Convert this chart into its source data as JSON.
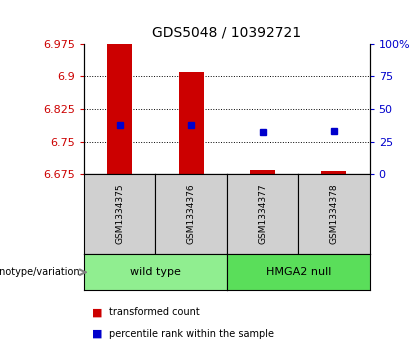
{
  "title": "GDS5048 / 10392721",
  "samples": [
    "GSM1334375",
    "GSM1334376",
    "GSM1334377",
    "GSM1334378"
  ],
  "groups": [
    "wild type",
    "wild type",
    "HMGA2 null",
    "HMGA2 null"
  ],
  "group_labels": [
    "wild type",
    "HMGA2 null"
  ],
  "bar_bottom": 6.675,
  "bar_tops": [
    6.975,
    6.91,
    6.685,
    6.683
  ],
  "percentile_values": [
    6.787,
    6.787,
    6.771,
    6.775
  ],
  "ylim": [
    6.675,
    6.975
  ],
  "yticks": [
    6.675,
    6.75,
    6.825,
    6.9,
    6.975
  ],
  "right_ytick_pct": [
    0,
    25,
    50,
    75,
    100
  ],
  "right_ytick_labels": [
    "0",
    "25",
    "50",
    "75",
    "100%"
  ],
  "bar_color": "#CC0000",
  "percentile_color": "#0000CC",
  "sample_box_color": "#D0D0D0",
  "group_colors": {
    "wild type": "#90EE90",
    "HMGA2 null": "#5ADE5A"
  },
  "legend_label_bar": "transformed count",
  "legend_label_percentile": "percentile rank within the sample",
  "genotype_label": "genotype/variation",
  "bar_width": 0.35,
  "title_fontsize": 10,
  "tick_fontsize": 8,
  "label_fontsize": 7.5
}
